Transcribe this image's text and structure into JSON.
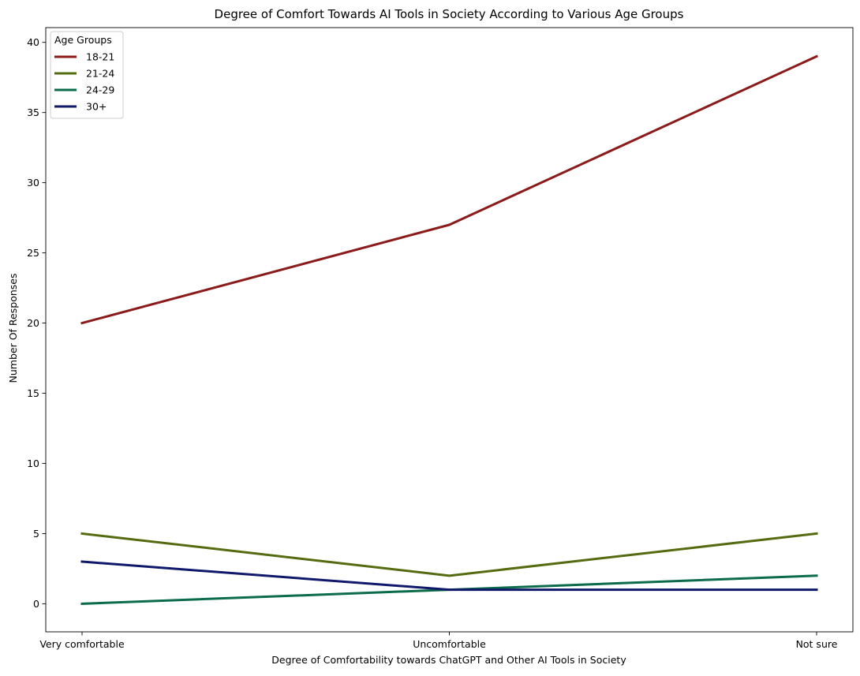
{
  "chart_data": {
    "type": "line",
    "title": "Degree of Comfort Towards AI Tools in Society According to Various Age Groups",
    "xlabel": "Degree of Comfortability towards ChatGPT and Other AI Tools in Society",
    "ylabel": "Number Of Responses",
    "categories": [
      "Very comfortable",
      "Uncomfortable",
      "Not sure"
    ],
    "ylim": [
      -2,
      41.05
    ],
    "yticks": [
      0,
      5,
      10,
      15,
      20,
      25,
      30,
      35,
      40
    ],
    "grid": false,
    "legend": {
      "title": "Age Groups",
      "placement": "top-left"
    },
    "series": [
      {
        "name": "18-21",
        "values": [
          20,
          27,
          39
        ],
        "color": "#8b1a1a"
      },
      {
        "name": "21-24",
        "values": [
          5,
          2,
          5
        ],
        "color": "#556b10"
      },
      {
        "name": "24-29",
        "values": [
          0,
          1,
          2
        ],
        "color": "#0b6b4a"
      },
      {
        "name": "30+",
        "values": [
          3,
          1,
          1
        ],
        "color": "#10186b"
      }
    ]
  }
}
